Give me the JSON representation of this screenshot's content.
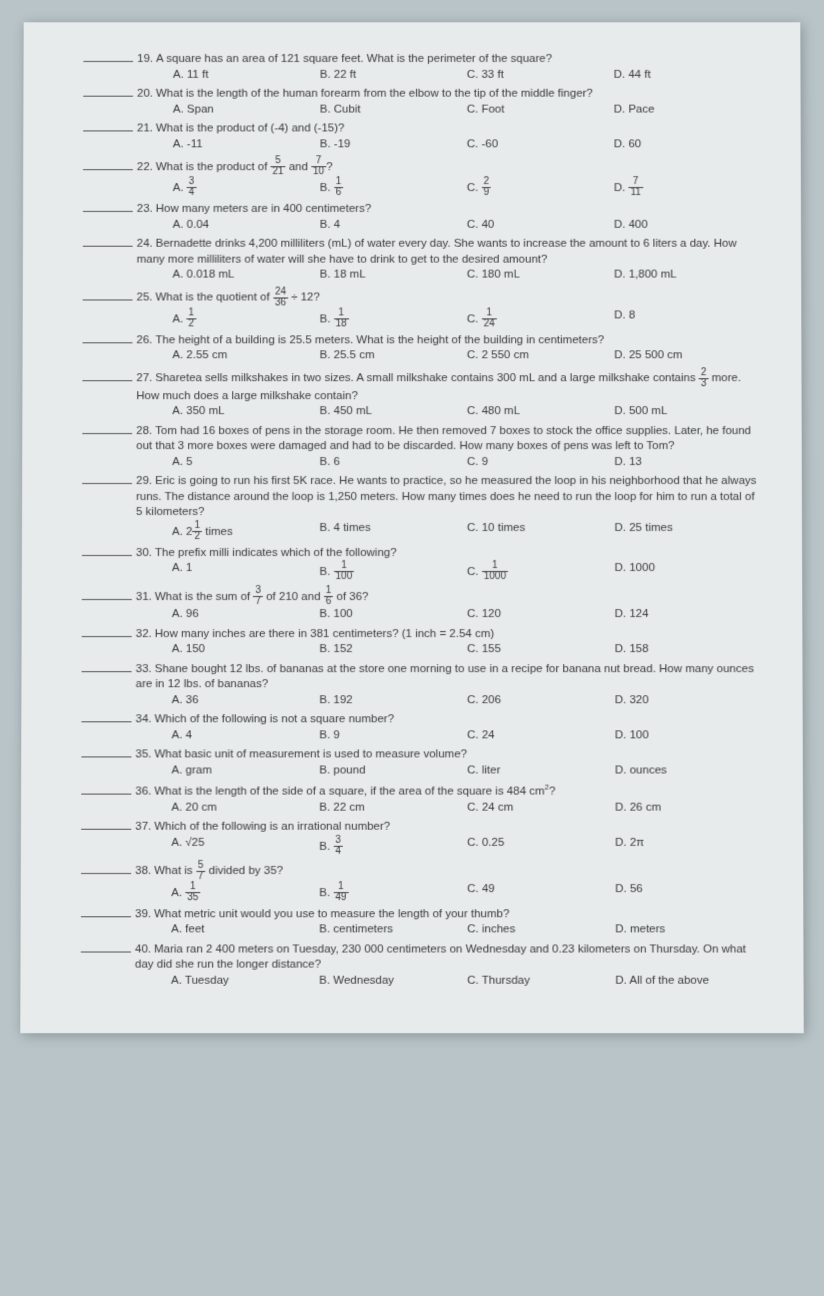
{
  "questions": [
    {
      "num": "19.",
      "text": "A square has an area of 121 square feet. What is the perimeter of the square?",
      "opts": [
        "A.   11 ft",
        "B.  22 ft",
        "C.  33 ft",
        "D.  44 ft"
      ]
    },
    {
      "num": "20.",
      "text": "What is the length of the human forearm from the elbow to the tip of the middle finger?",
      "opts": [
        "A.   Span",
        "B. Cubit",
        "C.  Foot",
        "D.  Pace"
      ]
    },
    {
      "num": "21.",
      "text": "What is the product of (-4) and (-15)?",
      "opts": [
        "A.   -11",
        "B.  -19",
        "C.  -60",
        "D.  60"
      ]
    },
    {
      "num": "22.",
      "text_html": "What is the product of <span class='frac'><span class='n'>5</span><span class='d'>21</span></span> and <span class='frac'><span class='n'>7</span><span class='d'>10</span></span>?",
      "opts_html": [
        "A. <span class='frac'><span class='n'>3</span><span class='d'>4</span></span>",
        "B. <span class='frac'><span class='n'>1</span><span class='d'>6</span></span>",
        "C. <span class='frac'><span class='n'>2</span><span class='d'>9</span></span>",
        "D. <span class='frac'><span class='n'>7</span><span class='d'>11</span></span>"
      ]
    },
    {
      "num": "23.",
      "text": "How many meters are in 400 centimeters?",
      "opts": [
        "A.   0.04",
        "B.  4",
        "C.  40",
        "D.  400"
      ]
    },
    {
      "num": "24.",
      "text": "Bernadette drinks 4,200 milliliters (mL) of water every day. She wants to increase the amount to 6 liters a day. How many more milliliters of water will she have to drink to get to the desired amount?",
      "opts": [
        "A.   0.018 mL",
        "B.  18 mL",
        "C.  180 mL",
        "D.  1,800 mL"
      ]
    },
    {
      "num": "25.",
      "text_html": "What is the quotient of <span class='frac'><span class='n'>24</span><span class='d'>36</span></span> ÷ 12?",
      "opts_html": [
        "A. <span class='frac'><span class='n'>1</span><span class='d'>2</span></span>",
        "B. <span class='frac'><span class='n'>1</span><span class='d'>18</span></span>",
        "C. <span class='frac'><span class='n'>1</span><span class='d'>24</span></span>",
        "D. 8"
      ]
    },
    {
      "num": "26.",
      "text": "The height of a building is 25.5 meters. What is the height of the building in centimeters?",
      "opts": [
        "A.   2.55 cm",
        "B.  25.5 cm",
        "C.  2 550 cm",
        "D.  25 500 cm"
      ]
    },
    {
      "num": "27.",
      "text_html": "Sharetea sells milkshakes in two sizes. A small milkshake contains 300 mL and a large milkshake contains <span class='frac'><span class='n'>2</span><span class='d'>3</span></span> more. How much does a large milkshake contain?",
      "opts": [
        "A.   350 mL",
        "B.  450 mL",
        "C.  480 mL",
        "D.  500 mL"
      ]
    },
    {
      "num": "28.",
      "text": "Tom had 16 boxes of pens in the storage room. He then removed 7 boxes to stock the office supplies. Later, he found out that 3 more boxes were damaged and had to be discarded. How many boxes of pens was left to Tom?",
      "opts": [
        "A.   5",
        "B.  6",
        "C.  9",
        "D.  13"
      ]
    },
    {
      "num": "29.",
      "text": "Eric is going to run his first 5K race. He wants to practice, so he measured the loop in his neighborhood that he always runs. The distance around the loop is 1,250 meters. How many times does he need to run the loop for him to run a total of 5 kilometers?",
      "opts_html": [
        "A.   2<span class='frac'><span class='n'>1</span><span class='d'>2</span></span> times",
        "B.  4 times",
        "C.  10 times",
        "D.  25 times"
      ]
    },
    {
      "num": "30.",
      "text": "The prefix milli indicates which of the following?",
      "opts_html": [
        "A.   1",
        "B. <span class='frac'><span class='n'>1</span><span class='d'>100</span></span>",
        "C. <span class='frac'><span class='n'>1</span><span class='d'>1000</span></span>",
        "D.  1000"
      ]
    },
    {
      "num": "31.",
      "text_html": "What is the sum of <span class='frac'><span class='n'>3</span><span class='d'>7</span></span> of 210 and <span class='frac'><span class='n'>1</span><span class='d'>6</span></span> of 36?",
      "opts": [
        "A.   96",
        "B.  100",
        "C.  120",
        "D.  124"
      ]
    },
    {
      "num": "32.",
      "text": "How many inches are there in 381 centimeters? (1 inch = 2.54 cm)",
      "opts": [
        "A.   150",
        "B.  152",
        "C.  155",
        "D.  158"
      ]
    },
    {
      "num": "33.",
      "text": "Shane bought 12 lbs. of bananas at the store one morning to use in a recipe for banana nut bread. How many ounces are in 12 lbs. of bananas?",
      "opts": [
        "A.  36",
        "B.  192",
        "C.  206",
        "D.  320"
      ]
    },
    {
      "num": "34.",
      "text": "Which of the following is not a square number?",
      "opts": [
        "A.  4",
        "B. 9",
        "C.  24",
        "D.  100"
      ]
    },
    {
      "num": "35.",
      "text": "What basic unit of measurement is used to measure volume?",
      "opts": [
        "A.  gram",
        "B.  pound",
        "C.   liter",
        "D.   ounces"
      ]
    },
    {
      "num": "36.",
      "text_html": "What is the length of the side of a square, if the area of the square is 484 cm<sup>2</sup>?",
      "opts": [
        "A.  20 cm",
        "B.  22 cm",
        "C.  24 cm",
        "D.   26 cm"
      ]
    },
    {
      "num": "37.",
      "text": "Which of the following is an irrational number?",
      "opts_html": [
        "A.   √25",
        "B. <span class='frac'><span class='n'>3</span><span class='d'>4</span></span>",
        "C.  0.25",
        "D.  2π"
      ]
    },
    {
      "num": "38.",
      "text_html": "What is <span class='frac'><span class='n'>5</span><span class='d'>7</span></span> divided by 35?",
      "opts_html": [
        "A. <span class='frac'><span class='n'>1</span><span class='d'>35</span></span>",
        "B. <span class='frac'><span class='n'>1</span><span class='d'>49</span></span>",
        "C.  49",
        "D.  56"
      ]
    },
    {
      "num": "39.",
      "text": "What metric unit would you use to measure the length of your thumb?",
      "opts": [
        "A.   feet",
        "B.  centimeters",
        "C.   inches",
        "D. meters"
      ]
    },
    {
      "num": "40.",
      "text": "Maria ran 2 400 meters on Tuesday, 230 000 centimeters on Wednesday and 0.23 kilometers on Thursday. On what day did she run the longer distance?",
      "opts": [
        "A.   Tuesday",
        "B.  Wednesday",
        "C.  Thursday",
        "D. All of the above"
      ]
    }
  ],
  "colors": {
    "page_bg": "#e8ebec",
    "body_bg": "#b8c4c8",
    "text": "#3a3a3a",
    "line": "#555555"
  },
  "typography": {
    "font_family": "Arial, sans-serif",
    "font_size_pt": 11.5,
    "frac_font_size_pt": 10
  }
}
